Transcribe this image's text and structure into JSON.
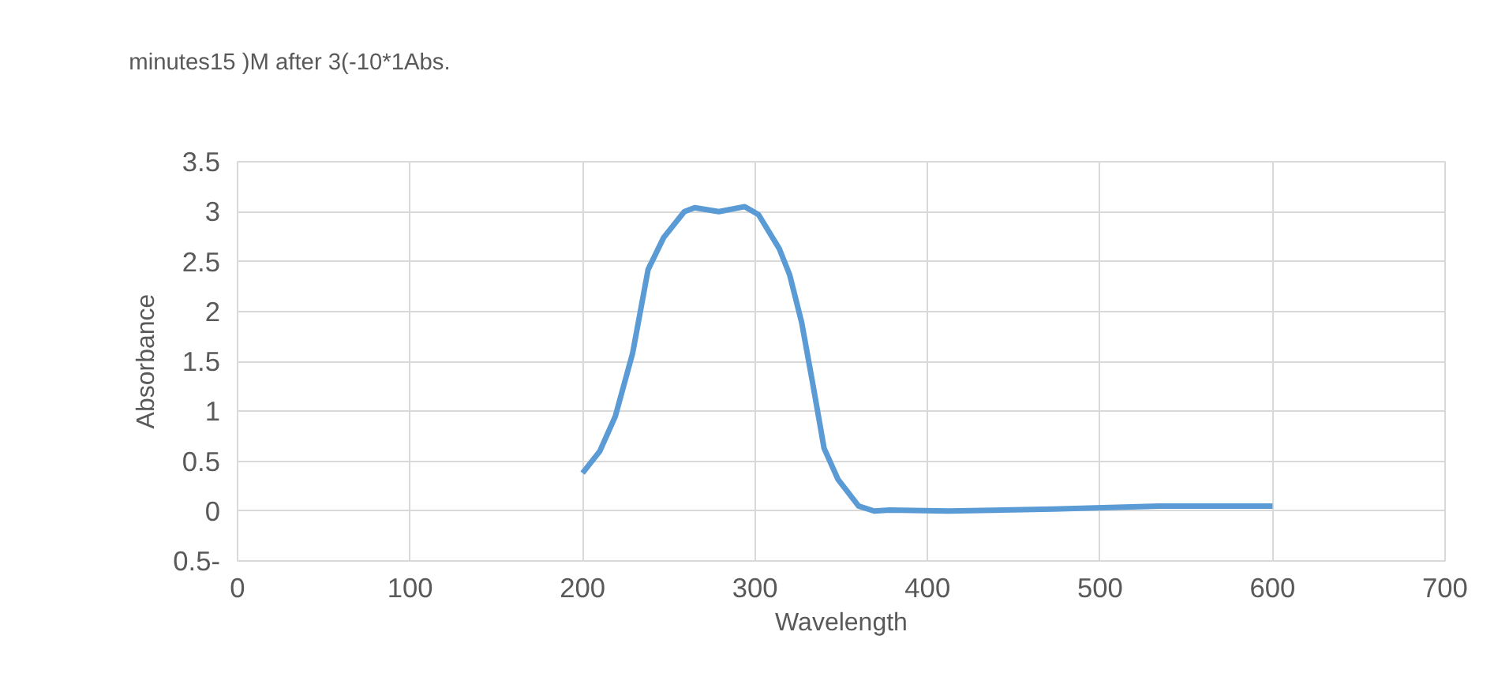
{
  "chart_data": {
    "type": "line",
    "xlabel": "Wavelength",
    "ylabel": "Absorbance",
    "xlim": [
      0,
      700
    ],
    "ylim": [
      -0.5,
      3.5
    ],
    "xticks": [
      0,
      100,
      200,
      300,
      400,
      500,
      600,
      700
    ],
    "yticks": [
      {
        "value": -0.5,
        "label": "0.5-"
      },
      0,
      0.5,
      1,
      1.5,
      2,
      2.5,
      3,
      3.5
    ],
    "grid": true,
    "legend": "top left",
    "marker": "none",
    "line_style": "solid",
    "series": [
      {
        "name": "minutes15 )M after 3(-10*1Abs.",
        "color": "#5b9bd5",
        "x": [
          200,
          210,
          219,
          229,
          238,
          247,
          259,
          265,
          279,
          294,
          302,
          314,
          320,
          327,
          333,
          340,
          348,
          360,
          369,
          378,
          412,
          473,
          534,
          600
        ],
        "values": [
          0.38,
          0.6,
          0.95,
          1.58,
          2.42,
          2.74,
          3.0,
          3.04,
          3.0,
          3.05,
          2.97,
          2.63,
          2.37,
          1.89,
          1.32,
          0.63,
          0.32,
          0.05,
          0.0,
          0.01,
          0.0,
          0.02,
          0.05,
          0.05
        ]
      }
    ]
  }
}
